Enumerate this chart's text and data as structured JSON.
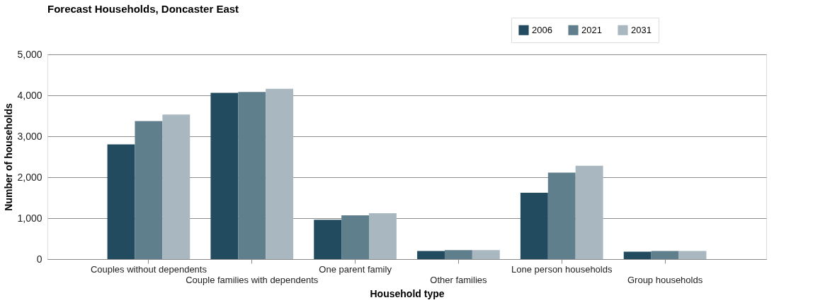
{
  "chart_data": {
    "type": "bar",
    "title": "Forecast Households, Doncaster East",
    "xlabel": "Household type",
    "ylabel": "Number of households",
    "categories": [
      "Couples without dependents",
      "Couple families with dependents",
      "One parent family",
      "Other families",
      "Lone person households",
      "Group households"
    ],
    "series": [
      {
        "name": "2006",
        "color": "#234b60",
        "values": [
          2800,
          4060,
          960,
          200,
          1620,
          180
        ]
      },
      {
        "name": "2021",
        "color": "#607f8c",
        "values": [
          3370,
          4080,
          1070,
          220,
          2110,
          200
        ]
      },
      {
        "name": "2031",
        "color": "#a9b8c0",
        "values": [
          3530,
          4160,
          1120,
          220,
          2280,
          200
        ]
      }
    ],
    "ylim": [
      0,
      5000
    ],
    "yticks": [
      0,
      {
        "value": 1000,
        "label": "1,000"
      },
      {
        "value": 2000,
        "label": "2,000"
      },
      {
        "value": 3000,
        "label": "3,000"
      },
      {
        "value": 4000,
        "label": "4,000"
      },
      {
        "value": 5000,
        "label": "5,000"
      }
    ],
    "grid": "y",
    "legend": "top right"
  }
}
